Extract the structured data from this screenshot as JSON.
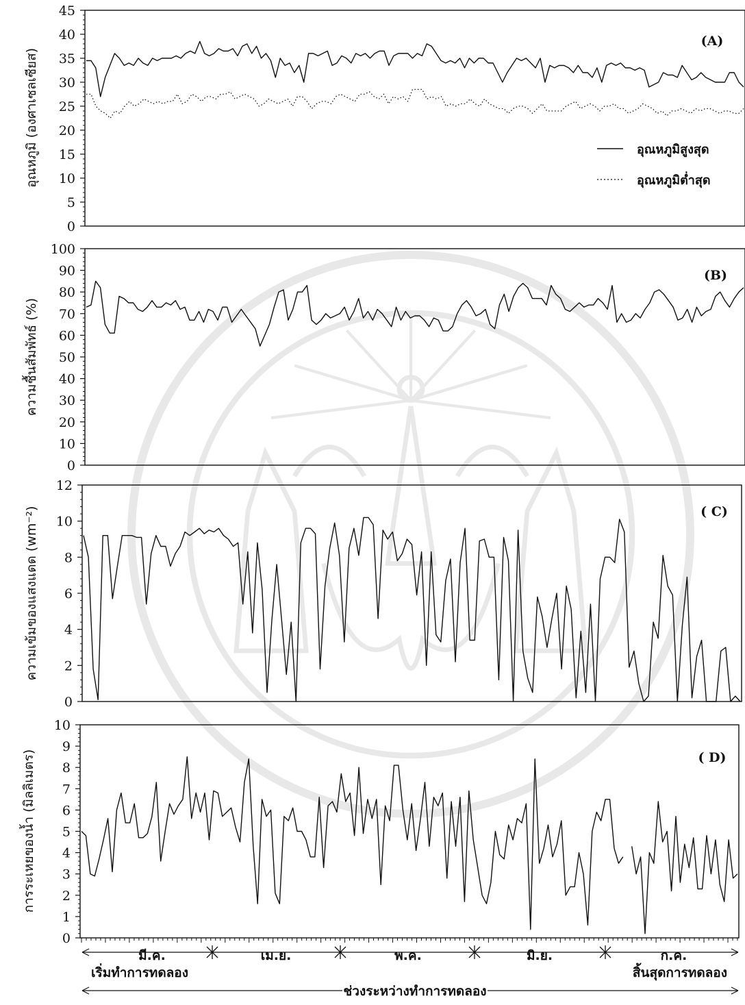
{
  "panels": [
    {
      "key": "A",
      "label": "(A)",
      "ylabel": "อุณหภูมิ (องศาเซลเซียส)",
      "ylim": [
        0,
        45
      ],
      "yticks": [
        0,
        5,
        10,
        15,
        20,
        25,
        30,
        35,
        40,
        45
      ]
    },
    {
      "key": "B",
      "label": "(B)",
      "ylabel": "ความชื้นสัมพัทธ์ (%)",
      "ylim": [
        0,
        100
      ],
      "yticks": [
        0,
        10,
        20,
        30,
        40,
        50,
        60,
        70,
        80,
        90,
        100
      ]
    },
    {
      "key": "C",
      "label": "( C)",
      "ylabel": "ความเข้มของแสงแดด (wm⁻²)",
      "ylim": [
        0,
        12
      ],
      "yticks": [
        0,
        2,
        4,
        6,
        8,
        10,
        12
      ]
    },
    {
      "key": "D",
      "label": "( D)",
      "ylabel": "การระเหยของน้ำ (มิลลิเมตร)",
      "ylim": [
        0,
        10
      ],
      "yticks": [
        0,
        1,
        2,
        3,
        4,
        5,
        6,
        7,
        8,
        9,
        10
      ]
    }
  ],
  "legend": {
    "max_label": "อุณหภูมิสูงสุด",
    "min_label": "อุณหภูมิต่ำสุด"
  },
  "timeline": {
    "months": [
      "มี.ค.",
      "เม.ย.",
      "พ.ค.",
      "มิ.ย.",
      "ก.ค."
    ],
    "start_label": "เริ่มทำการทดลอง",
    "end_label": "สิ้นสุดการทดลอง",
    "period_label": "ช่วงระหว่างทำการทดลอง"
  },
  "chart_data": [
    {
      "type": "line",
      "panel": "A",
      "ylim": [
        0,
        45
      ],
      "series": [
        {
          "name": "อุณหภูมิสูงสุด",
          "style": "solid",
          "values": [
            34.5,
            34.5,
            33,
            27,
            31,
            33.5,
            36,
            35,
            33.5,
            34,
            33.5,
            35,
            34,
            33.5,
            35,
            34.5,
            35,
            35,
            35,
            35.5,
            35,
            36,
            36.5,
            36,
            38.5,
            36,
            35.5,
            36,
            37,
            36.5,
            36.5,
            37,
            35.5,
            37.5,
            38,
            36,
            37.5,
            35,
            36,
            34.5,
            31,
            35,
            33.5,
            34,
            32,
            33.5,
            30,
            36,
            36,
            35.5,
            36,
            36.5,
            33.5,
            34,
            35.5,
            35,
            34,
            36,
            35.5,
            36,
            35,
            36,
            36.5,
            36.5,
            33.5,
            35.5,
            36,
            36,
            36,
            35,
            36,
            35.5,
            38,
            37.5,
            36,
            34.5,
            34,
            34.5,
            34,
            35,
            33,
            35,
            34,
            35,
            35,
            34,
            34,
            32,
            30,
            32,
            33.5,
            35,
            34.5,
            35,
            34,
            33,
            35,
            30,
            33.5,
            33,
            33.5,
            33.5,
            33,
            32,
            33.5,
            32,
            32,
            31,
            33,
            30,
            33.5,
            34,
            33.5,
            34,
            33,
            33,
            32.5,
            33,
            32.5,
            29,
            29.5,
            30,
            32,
            31.5,
            31.5,
            31,
            33.5,
            32,
            30.5,
            31,
            32,
            31,
            30.5,
            30,
            30,
            30,
            32,
            32,
            30,
            29
          ]
        },
        {
          "name": "อุณหภูมิต่ำสุด",
          "style": "dotted",
          "values": [
            27.5,
            27.5,
            25,
            24,
            23.5,
            22.5,
            24,
            23.5,
            25,
            26,
            25,
            25.5,
            26.5,
            26,
            25.5,
            26,
            25.5,
            26,
            26,
            27.5,
            25.5,
            26,
            27.5,
            27,
            26,
            27,
            27,
            26.5,
            27.5,
            27.5,
            28,
            26.5,
            27,
            27.5,
            27,
            26.5,
            25,
            25.5,
            26.5,
            26,
            25.5,
            26,
            26.5,
            25,
            27,
            27,
            26,
            24.5,
            25.5,
            26,
            26,
            25.5,
            27,
            27.5,
            27,
            26.5,
            26,
            27.5,
            27.5,
            28,
            27,
            26.5,
            27.5,
            25.5,
            27,
            26.5,
            27,
            26,
            28.5,
            28.5,
            28.5,
            26.5,
            27,
            26.5,
            27,
            25,
            25.5,
            25,
            25.5,
            25.5,
            26.5,
            25.5,
            25,
            26.5,
            25.5,
            25,
            24.5,
            24.5,
            23.5,
            24.5,
            25,
            25,
            24.5,
            23.5,
            24.5,
            25.5,
            24,
            24,
            24,
            24,
            25,
            25.5,
            26,
            24.5,
            25,
            25.5,
            25,
            24,
            25,
            25,
            25.5,
            24.5,
            24.5,
            23.5,
            24,
            24.5,
            25.5,
            25,
            24.5,
            23.5,
            24,
            23,
            24,
            24,
            24.5,
            24,
            23.5,
            24.5,
            24,
            24.5,
            24.5,
            24,
            23.5,
            24,
            24,
            23.5,
            23.5,
            24.5
          ]
        }
      ]
    },
    {
      "type": "line",
      "panel": "B",
      "ylim": [
        0,
        100
      ],
      "series": [
        {
          "name": "",
          "style": "solid",
          "values": [
            73,
            74,
            85,
            82,
            65,
            61,
            61,
            78,
            77,
            75,
            75,
            72,
            71,
            73,
            76,
            73,
            73,
            75,
            74,
            76,
            72,
            73,
            67,
            67,
            71,
            66,
            72,
            71,
            67,
            73,
            73,
            66,
            69,
            72,
            69,
            66,
            63,
            55,
            60,
            65,
            73,
            80,
            81,
            67,
            72,
            80,
            80,
            83,
            67,
            65,
            67,
            70,
            68,
            69,
            70,
            73,
            67,
            71,
            77,
            68,
            71,
            67,
            72,
            70,
            67,
            64,
            73,
            67,
            71,
            68,
            69,
            69,
            67,
            64,
            68,
            67,
            62,
            62,
            64,
            70,
            74,
            76,
            73,
            69,
            70,
            72,
            65,
            63,
            74,
            79,
            71,
            78,
            82,
            84,
            82,
            77,
            77,
            77,
            74,
            83,
            79,
            77,
            72,
            71,
            73,
            75,
            73,
            74,
            74,
            77,
            75,
            72,
            83,
            66,
            70,
            66,
            67,
            70,
            68,
            72,
            75,
            80,
            81,
            79,
            76,
            73,
            67,
            68,
            72,
            66,
            73,
            69,
            71,
            72,
            78,
            80,
            76,
            73,
            77,
            80,
            82
          ]
        }
      ]
    },
    {
      "type": "line",
      "panel": "C",
      "ylim": [
        0,
        12
      ],
      "series": [
        {
          "name": "",
          "style": "solid",
          "values": [
            9.2,
            8,
            1.8,
            0.1,
            9.2,
            9.2,
            5.7,
            7.5,
            9.2,
            9.2,
            9.2,
            9.1,
            9.1,
            5.4,
            8.2,
            9.2,
            8.6,
            8.6,
            7.5,
            8.2,
            8.6,
            9.4,
            9.2,
            9.4,
            9.6,
            9.3,
            9.5,
            9.4,
            9.6,
            9.2,
            9.0,
            8.6,
            8.8,
            5.4,
            8.3,
            3.8,
            8.8,
            6.2,
            0.5,
            4.5,
            7.6,
            4.6,
            1.5,
            4.4,
            0.0,
            8.8,
            9.6,
            9.6,
            9.3,
            1.8,
            6.4,
            8.5,
            9.9,
            8.1,
            3.3,
            8.5,
            9.6,
            8.1,
            10.2,
            10.2,
            9.8,
            4.6,
            9.5,
            9.0,
            9.4,
            7.8,
            8.2,
            9.0,
            8.7,
            5.9,
            8.3,
            2.0,
            8.3,
            3.7,
            3.3,
            6.7,
            7.9,
            2.2,
            7.7,
            9.6,
            3.4,
            3.4,
            8.9,
            9.0,
            8.0,
            8.0,
            1.2,
            9.1,
            7.8,
            0.0,
            9.5,
            2.8,
            1.3,
            0.5,
            5.8,
            4.7,
            3.0,
            4.6,
            6.0,
            1.8,
            6.4,
            5.1,
            0.2,
            3.9,
            0.5,
            5.4,
            0.0,
            6.8,
            8.0,
            8.0,
            7.7,
            10.1,
            9.4,
            1.9,
            2.8,
            1.0,
            0.0,
            0.3,
            4.4,
            3.5,
            8.1,
            6.4,
            5.9,
            0.0,
            4.2,
            6.9,
            0.2,
            2.5,
            3.4,
            0.0,
            0.0,
            0.0,
            2.8,
            3.0,
            0.0,
            0.3,
            0.0
          ]
        }
      ]
    },
    {
      "type": "line",
      "panel": "D",
      "ylim": [
        0,
        10
      ],
      "series": [
        {
          "name": "",
          "style": "solid",
          "values": [
            5.0,
            4.8,
            3.0,
            2.9,
            3.7,
            4.6,
            5.6,
            3.1,
            6.0,
            6.8,
            5.4,
            5.4,
            6.3,
            4.7,
            4.7,
            4.9,
            5.7,
            7.3,
            3.6,
            5.0,
            6.3,
            5.8,
            6.2,
            6.5,
            8.5,
            5.6,
            6.8,
            5.9,
            6.8,
            4.6,
            6.9,
            6.8,
            5.7,
            5.9,
            6.1,
            5.2,
            4.5,
            7.3,
            8.4,
            4.3,
            1.6,
            6.5,
            5.7,
            6.0,
            2.1,
            1.6,
            5.7,
            5.5,
            6.1,
            5.0,
            5.0,
            4.6,
            3.8,
            3.8,
            6.6,
            3.3,
            6.2,
            6.4,
            5.9,
            7.7,
            6.4,
            6.8,
            4.8,
            8.0,
            4.9,
            6.5,
            5.6,
            6.5,
            2.5,
            6.2,
            5.5,
            8.1,
            8.1,
            6.0,
            4.6,
            6.3,
            4.1,
            5.6,
            7.3,
            4.3,
            6.6,
            6.2,
            6.8,
            2.8,
            6.4,
            4.3,
            6.6,
            1.7,
            6.9,
            4.6,
            3.3,
            2.0,
            1.6,
            2.6,
            5.0,
            3.9,
            3.7,
            5.3,
            4.6,
            5.6,
            5.4,
            6.3,
            0.4,
            8.4,
            3.5,
            4.2,
            5.3,
            3.8,
            4.4,
            5.5,
            2.0,
            2.4,
            2.4,
            4.0,
            3.0,
            0.6,
            5.0,
            5.9,
            5.5,
            6.5,
            6.5,
            4.2,
            3.5,
            3.8,
            null,
            4.3,
            3.0,
            3.8,
            0.2,
            4.0,
            3.5,
            6.4,
            4.5,
            5.0,
            2.2,
            5.7,
            2.6,
            4.4,
            3.3,
            4.7,
            2.3,
            2.3,
            4.8,
            3.0,
            4.6,
            2.5,
            1.7,
            4.6,
            2.8,
            3.0
          ]
        }
      ]
    }
  ]
}
